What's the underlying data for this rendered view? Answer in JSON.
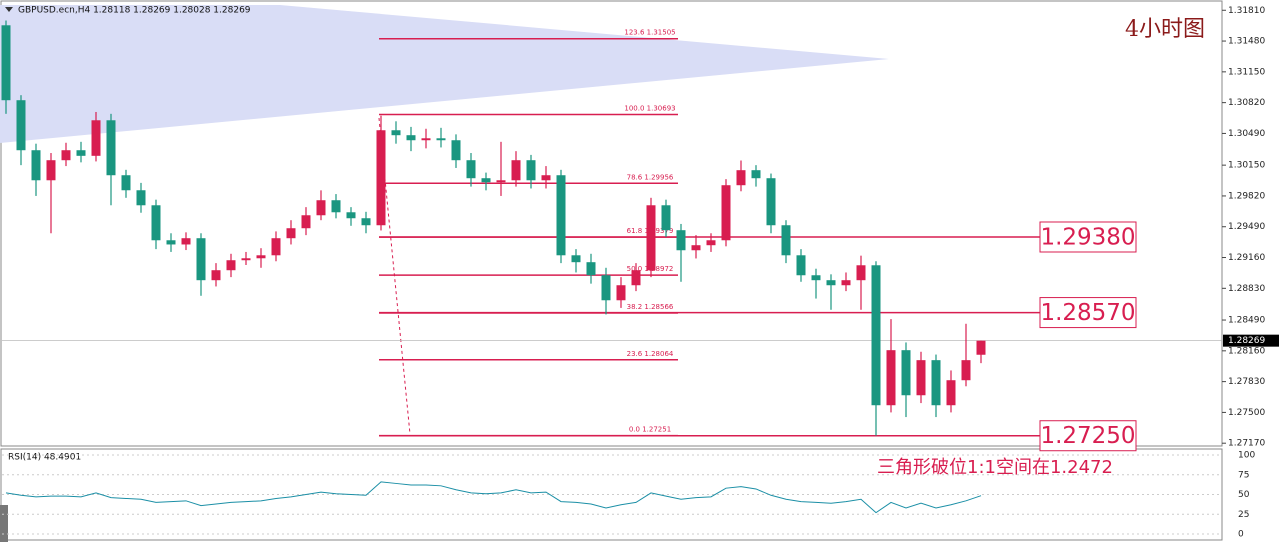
{
  "chart_data": {
    "type": "candlestick",
    "header": "GBPUSD.ecn,H4  1.28118 1.28269 1.28028 1.28269",
    "annotations": [
      "4小时图",
      "三角形破位1:1空间在1.2472"
    ],
    "up_color": "#d81e50",
    "down_color": "#1a9680",
    "ylim": [
      1.2714,
      1.3192
    ],
    "yticks": [
      {
        "value": 1.3181,
        "label": "1.31810"
      },
      {
        "value": 1.3148,
        "label": "1.31480"
      },
      {
        "value": 1.3115,
        "label": "1.31150"
      },
      {
        "value": 1.3082,
        "label": "1.30820"
      },
      {
        "value": 1.3049,
        "label": "1.30490"
      },
      {
        "value": 1.3015,
        "label": "1.30150"
      },
      {
        "value": 1.2982,
        "label": "1.29820"
      },
      {
        "value": 1.2949,
        "label": "1.29490"
      },
      {
        "value": 1.2916,
        "label": "1.29160"
      },
      {
        "value": 1.2883,
        "label": "1.28830"
      },
      {
        "value": 1.2849,
        "label": "1.28490"
      },
      {
        "value": 1.2816,
        "label": "1.28160"
      },
      {
        "value": 1.2783,
        "label": "1.27830"
      },
      {
        "value": 1.275,
        "label": "1.27500"
      },
      {
        "value": 1.2717,
        "label": "1.27170"
      }
    ],
    "open": [
      1.31649,
      1.30846,
      1.3031,
      1.29988,
      1.30203,
      1.3031,
      1.3025,
      1.30631,
      1.30042,
      1.29881,
      1.2972,
      1.29345,
      1.293,
      1.29367,
      1.28917,
      1.29024,
      1.29131,
      1.29152,
      1.29184,
      1.29367,
      1.29474,
      1.29613,
      1.29774,
      1.29645,
      1.29581,
      1.29506,
      1.30524,
      1.30471,
      1.30417,
      1.30438,
      1.30417,
      1.30203,
      1.3001,
      1.29967,
      1.29988,
      1.30203,
      1.29988,
      1.30042,
      1.29184,
      1.2911,
      1.2897,
      1.28702,
      1.28863,
      1.29024,
      1.2972,
      1.29453,
      1.29238,
      1.29292,
      1.29345,
      1.29935,
      1.30096,
      1.3001,
      1.29506,
      1.29184,
      1.2897,
      1.28917,
      1.28863,
      1.28917,
      1.29077,
      1.27577,
      1.28167,
      1.27684,
      1.2806,
      1.27577,
      1.27845,
      1.28118
    ],
    "high": [
      1.317,
      1.309,
      1.3038,
      1.3028,
      1.3039,
      1.304,
      1.3072,
      1.307,
      1.301,
      1.2996,
      1.2978,
      1.2942,
      1.2943,
      1.2942,
      1.291,
      1.292,
      1.2922,
      1.2926,
      1.2944,
      1.2956,
      1.297,
      1.2988,
      1.2984,
      1.297,
      1.2965,
      1.3068,
      1.3062,
      1.3056,
      1.3054,
      1.3055,
      1.3048,
      1.3028,
      1.3007,
      1.304,
      1.303,
      1.3026,
      1.3014,
      1.301,
      1.2925,
      1.292,
      1.2905,
      1.2895,
      1.291,
      1.298,
      1.2978,
      1.2952,
      1.294,
      1.2942,
      1.3,
      1.302,
      1.3015,
      1.3006,
      1.2956,
      1.2925,
      1.2904,
      1.2898,
      1.29,
      1.2918,
      1.2912,
      1.285,
      1.2825,
      1.2815,
      1.2812,
      1.2795,
      1.2845,
      1.28269
    ],
    "low": [
      1.307,
      1.3015,
      1.2982,
      1.2942,
      1.3014,
      1.3018,
      1.3019,
      1.2972,
      1.298,
      1.2964,
      1.2925,
      1.2922,
      1.2924,
      1.2875,
      1.2885,
      1.2895,
      1.2908,
      1.2905,
      1.2912,
      1.293,
      1.294,
      1.2956,
      1.2958,
      1.295,
      1.2942,
      1.2945,
      1.3038,
      1.303,
      1.3033,
      1.3034,
      1.3012,
      1.2992,
      1.2988,
      1.2982,
      1.2992,
      1.299,
      1.299,
      1.291,
      1.29,
      1.2888,
      1.2855,
      1.2862,
      1.288,
      1.2895,
      1.2938,
      1.289,
      1.2915,
      1.2922,
      1.2928,
      1.2987,
      1.2992,
      1.2942,
      1.291,
      1.289,
      1.2872,
      1.286,
      1.288,
      1.286,
      1.27251,
      1.275,
      1.2745,
      1.276,
      1.2745,
      1.275,
      1.2778,
      1.28028
    ],
    "close": [
      1.30846,
      1.3031,
      1.29988,
      1.30203,
      1.3031,
      1.3025,
      1.30631,
      1.30042,
      1.29881,
      1.2972,
      1.29345,
      1.293,
      1.29367,
      1.28917,
      1.29024,
      1.29131,
      1.29152,
      1.29184,
      1.29367,
      1.29474,
      1.29613,
      1.29774,
      1.29645,
      1.29581,
      1.29506,
      1.30524,
      1.30471,
      1.30417,
      1.30438,
      1.30417,
      1.30203,
      1.3001,
      1.29967,
      1.29988,
      1.30203,
      1.29988,
      1.30042,
      1.29184,
      1.2911,
      1.2897,
      1.28702,
      1.28863,
      1.29024,
      1.2972,
      1.29453,
      1.29238,
      1.29292,
      1.29345,
      1.29935,
      1.30096,
      1.3001,
      1.29506,
      1.29184,
      1.2897,
      1.28917,
      1.28863,
      1.28917,
      1.29077,
      1.27577,
      1.28167,
      1.27684,
      1.2806,
      1.27577,
      1.27845,
      1.2806,
      1.28269
    ],
    "current_price": {
      "value": 1.28269,
      "label": "1.28269"
    },
    "fib_levels": [
      {
        "value": 1.31505,
        "label": "123.6  1.31505"
      },
      {
        "value": 1.30693,
        "label": "100.0  1.30693"
      },
      {
        "value": 1.29956,
        "label": "78.6  1.29956"
      },
      {
        "value": 1.29379,
        "label": "61.8  1.29379"
      },
      {
        "value": 1.28972,
        "label": "50.0  1.28972"
      },
      {
        "value": 1.28566,
        "label": "38.2  1.28566"
      },
      {
        "value": 1.28064,
        "label": "23.6  1.28064"
      },
      {
        "value": 1.27251,
        "label": "0.0  1.27251"
      }
    ],
    "levels": [
      {
        "value": 1.2938,
        "label": "1.29380"
      },
      {
        "value": 1.2857,
        "label": "1.28570"
      },
      {
        "value": 1.2725,
        "label": "1.27250"
      }
    ],
    "rsi": {
      "label": "RSI(14) 48.4901",
      "color": "#1b8fa6",
      "ylim": [
        0,
        100
      ],
      "yticks": [
        100,
        75,
        50,
        25,
        0
      ],
      "values": [
        52,
        49,
        47,
        48,
        48,
        47,
        52,
        46,
        45,
        44,
        40,
        41,
        42,
        36,
        38,
        40,
        41,
        42,
        45,
        47,
        50,
        53,
        51,
        50,
        49,
        66,
        64,
        62,
        62,
        61,
        56,
        52,
        51,
        52,
        56,
        52,
        53,
        41,
        40,
        38,
        33,
        37,
        40,
        52,
        48,
        44,
        46,
        47,
        58,
        60,
        57,
        49,
        44,
        41,
        40,
        39,
        41,
        44,
        27,
        40,
        33,
        39,
        33,
        37,
        42,
        48.4901
      ]
    }
  }
}
